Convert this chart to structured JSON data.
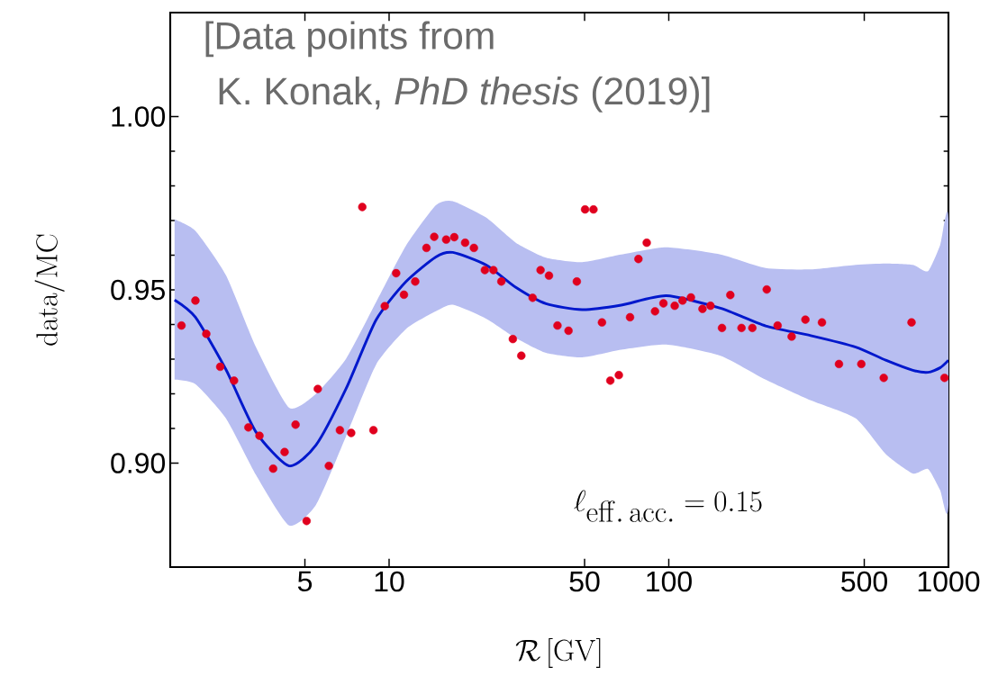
{
  "chart_data": {
    "type": "scatter",
    "xlabel": "\\mathcal{R}\\,[\\mathrm{GV}]",
    "ylabel": "\\mathrm{data/MC}",
    "annotations": [
      "[Data points from",
      "K. Konak, *PhD thesis* (2019)]",
      "\\ell_{\\mathrm{eff.\\,acc.}} = 0.15"
    ],
    "log": "x",
    "xlim": [
      1.65,
      1000
    ],
    "ylim": [
      0.87,
      1.03
    ],
    "xticks": [
      5,
      10,
      50,
      100,
      500,
      1000
    ],
    "yticks": [
      {
        "value": 0.9,
        "label": "0.90"
      },
      {
        "value": 0.95,
        "label": "0.95"
      },
      {
        "value": 1.0,
        "label": "1.00"
      }
    ],
    "marker": "circle",
    "series": [
      {
        "type": "line",
        "marker": "none",
        "color": "#0018cc",
        "x": [
          1.71,
          2.03,
          2.61,
          3.34,
          4.39,
          5.48,
          7.02,
          8.98,
          11.5,
          14.7,
          16.9,
          22.2,
          28.4,
          36.4,
          49.0,
          67.6,
          98.0,
          153,
          222,
          322,
          466,
          597,
          746,
          845,
          933,
          1000
        ],
        "values": [
          0.9471,
          0.9421,
          0.927,
          0.909,
          0.8992,
          0.9052,
          0.9215,
          0.9413,
          0.9524,
          0.9595,
          0.9608,
          0.9572,
          0.9507,
          0.946,
          0.9443,
          0.9456,
          0.9483,
          0.9447,
          0.9396,
          0.9368,
          0.9335,
          0.9297,
          0.9268,
          0.9262,
          0.9275,
          0.9297
        ],
        "upper": [
          0.9703,
          0.967,
          0.9542,
          0.9335,
          0.916,
          0.92,
          0.9301,
          0.9464,
          0.9628,
          0.9744,
          0.9756,
          0.9709,
          0.9636,
          0.9593,
          0.958,
          0.9602,
          0.9623,
          0.9602,
          0.9563,
          0.9559,
          0.9572,
          0.9576,
          0.9572,
          0.9554,
          0.9628,
          0.9705
        ],
        "lower": [
          0.9241,
          0.9228,
          0.9129,
          0.8966,
          0.882,
          0.888,
          0.9078,
          0.9284,
          0.9387,
          0.9438,
          0.9457,
          0.9417,
          0.9361,
          0.9318,
          0.9305,
          0.9327,
          0.9342,
          0.931,
          0.9241,
          0.9181,
          0.9129,
          0.9026,
          0.897,
          0.8983,
          0.8923,
          0.888
        ]
      },
      {
        "color": "#e0001e",
        "x": [
          1.81,
          2.03,
          2.22,
          2.49,
          2.79,
          3.14,
          3.44,
          3.85,
          4.23,
          4.63,
          5.07,
          5.56,
          6.09,
          6.67,
          7.32,
          8.02,
          8.79,
          9.65,
          10.6,
          11.3,
          12.4,
          13.6,
          14.5,
          16.0,
          17.1,
          18.7,
          20.1,
          22.0,
          23.6,
          25.2,
          27.7,
          29.7,
          32.6,
          34.8,
          37.3,
          40.0,
          43.8,
          46.9,
          50.2,
          53.8,
          57.7,
          61.8,
          66.3,
          72.7,
          77.9,
          83.4,
          89.3,
          95.7,
          105,
          112,
          120,
          132,
          141,
          155,
          166,
          182,
          199,
          224,
          245,
          275,
          308,
          353,
          406,
          488,
          587,
          738,
          968
        ],
        "values": [
          0.9397,
          0.9469,
          0.9373,
          0.9278,
          0.9238,
          0.9103,
          0.9079,
          0.8984,
          0.9032,
          0.9111,
          0.8833,
          0.9214,
          0.8992,
          0.9095,
          0.9087,
          0.9739,
          0.9095,
          0.9453,
          0.9548,
          0.9486,
          0.9524,
          0.9621,
          0.9653,
          0.9645,
          0.9652,
          0.9636,
          0.9621,
          0.9557,
          0.9557,
          0.9524,
          0.9358,
          0.931,
          0.9477,
          0.9557,
          0.9541,
          0.9397,
          0.9382,
          0.9524,
          0.9732,
          0.9732,
          0.9406,
          0.9238,
          0.9254,
          0.9421,
          0.9589,
          0.9636,
          0.9438,
          0.9461,
          0.9454,
          0.9469,
          0.9478,
          0.9445,
          0.9454,
          0.939,
          0.9485,
          0.939,
          0.939,
          0.9501,
          0.9397,
          0.9365,
          0.9414,
          0.9406,
          0.9286,
          0.9286,
          0.9246,
          0.9406,
          0.9246
        ]
      }
    ]
  }
}
